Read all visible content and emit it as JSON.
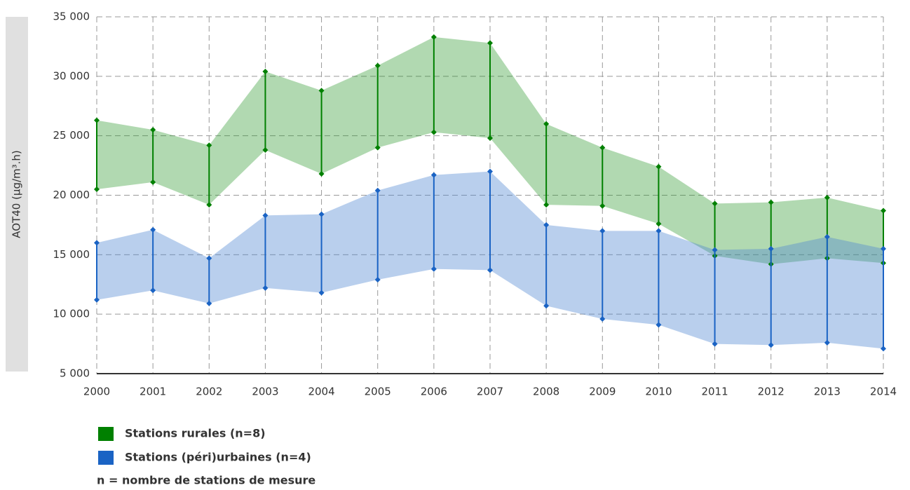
{
  "chart_data": {
    "type": "arearange",
    "y_label": "AOT40 (µg/m³.h)",
    "x": [
      2000,
      2001,
      2002,
      2003,
      2004,
      2005,
      2006,
      2007,
      2008,
      2009,
      2010,
      2011,
      2012,
      2013,
      2014
    ],
    "xlim": [
      2000,
      2014
    ],
    "ylim": [
      5000,
      35000
    ],
    "yticks": [
      {
        "value": 5000,
        "label": "5 000"
      },
      {
        "value": 10000,
        "label": "10 000"
      },
      {
        "value": 15000,
        "label": "15 000"
      },
      {
        "value": 20000,
        "label": "20 000"
      },
      {
        "value": 25000,
        "label": "25 000"
      },
      {
        "value": 30000,
        "label": "30 000"
      },
      {
        "value": 35000,
        "label": "35 000"
      }
    ],
    "grid": true,
    "series": [
      {
        "name": "Stations rurales (n=8)",
        "color": "#008000",
        "fill": "rgba(40,150,40,0.36)",
        "low": [
          20500,
          21100,
          19200,
          23800,
          21800,
          24000,
          25300,
          24800,
          19200,
          19100,
          17600,
          14900,
          14200,
          14700,
          14300
        ],
        "high": [
          26300,
          25500,
          24200,
          30400,
          28800,
          30900,
          33300,
          32800,
          26000,
          24000,
          22400,
          19300,
          19400,
          19800,
          18700
        ]
      },
      {
        "name": "Stations (péri)urbaines (n=4)",
        "color": "#1a63c4",
        "fill": "rgba(80,135,210,0.4)",
        "low": [
          11200,
          12000,
          10900,
          12200,
          11800,
          12900,
          13800,
          13700,
          10700,
          9600,
          9100,
          7500,
          7400,
          7600,
          7100
        ],
        "high": [
          16000,
          17100,
          14700,
          18300,
          18400,
          20400,
          21700,
          22000,
          17500,
          17000,
          17000,
          15400,
          15500,
          16500,
          15500
        ]
      }
    ],
    "note": "n = nombre de stations de mesure"
  }
}
